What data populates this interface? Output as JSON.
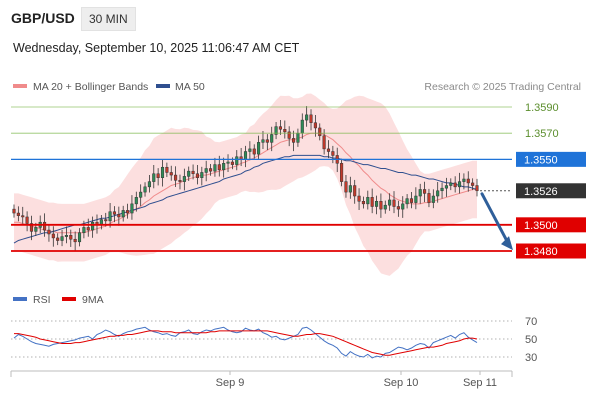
{
  "header": {
    "pair": "GBP/USD",
    "interval": "30 MIN",
    "datetime": "Wednesday, September 10, 2025 11:06:47 AM CET"
  },
  "legend": {
    "ma20_label": "MA 20 + Bollinger Bands",
    "ma20_color": "#f08b8b",
    "ma50_label": "MA 50",
    "ma50_color": "#2f4f8f",
    "credit": "Research © 2025 Trading Central"
  },
  "rsi_legend": {
    "rsi_label": "RSI",
    "rsi_color": "#4472c4",
    "ma9_label": "9MA",
    "ma9_color": "#e00000"
  },
  "chart_data": [
    {
      "type": "candlestick",
      "ylim": [
        1.3466,
        1.36
      ],
      "x_ticks": [
        "Sep 9",
        "Sep 10",
        "Sep 11"
      ],
      "levels": [
        {
          "value": 1.359,
          "label": "1.3590",
          "color": "#7ab648",
          "style": "line-green"
        },
        {
          "value": 1.357,
          "label": "1.3570",
          "color": "#7ab648",
          "style": "line-green"
        },
        {
          "value": 1.355,
          "label": "1.3550",
          "color": "#1f73d8",
          "style": "badge"
        },
        {
          "value": 1.3526,
          "label": "1.3526",
          "color": "#333333",
          "style": "badge-current"
        },
        {
          "value": 1.35,
          "label": "1.3500",
          "color": "#e00000",
          "style": "badge"
        },
        {
          "value": 1.348,
          "label": "1.3480",
          "color": "#e00000",
          "style": "badge"
        }
      ],
      "closes": [
        1.3509,
        1.3507,
        1.3506,
        1.3501,
        1.3495,
        1.3498,
        1.3502,
        1.3496,
        1.3493,
        1.349,
        1.3488,
        1.3491,
        1.3492,
        1.3489,
        1.3487,
        1.3494,
        1.3498,
        1.3496,
        1.3502,
        1.35,
        1.3504,
        1.3503,
        1.351,
        1.3508,
        1.3506,
        1.3511,
        1.3509,
        1.3516,
        1.3521,
        1.3525,
        1.3529,
        1.3533,
        1.3539,
        1.3536,
        1.3544,
        1.354,
        1.3538,
        1.3534,
        1.3533,
        1.3537,
        1.3541,
        1.3539,
        1.3536,
        1.354,
        1.3543,
        1.3541,
        1.3546,
        1.3542,
        1.3547,
        1.3548,
        1.3546,
        1.3552,
        1.355,
        1.3556,
        1.3558,
        1.3554,
        1.3563,
        1.3565,
        1.3563,
        1.3569,
        1.3575,
        1.3573,
        1.3571,
        1.3566,
        1.3563,
        1.357,
        1.358,
        1.3584,
        1.3578,
        1.3574,
        1.3568,
        1.3558,
        1.3556,
        1.3553,
        1.3547,
        1.3533,
        1.3525,
        1.353,
        1.3522,
        1.3518,
        1.3516,
        1.3521,
        1.3514,
        1.3518,
        1.3512,
        1.3515,
        1.3519,
        1.3514,
        1.3512,
        1.3516,
        1.352,
        1.3517,
        1.3522,
        1.3527,
        1.3524,
        1.3517,
        1.3522,
        1.3526,
        1.3528,
        1.353,
        1.3532,
        1.3529,
        1.3533,
        1.3535,
        1.3532,
        1.353,
        1.3526
      ],
      "ma20": [
        1.3502,
        1.3502,
        1.3501,
        1.35,
        1.3499,
        1.3498,
        1.3497,
        1.3496,
        1.3495,
        1.3495,
        1.3494,
        1.3494,
        1.3494,
        1.3494,
        1.3494,
        1.3494,
        1.3494,
        1.3495,
        1.3496,
        1.3497,
        1.3498,
        1.3499,
        1.3501,
        1.3503,
        1.3504,
        1.3506,
        1.3508,
        1.351,
        1.3512,
        1.3514,
        1.3517,
        1.3519,
        1.3522,
        1.3524,
        1.3526,
        1.3528,
        1.353,
        1.3531,
        1.3532,
        1.3534,
        1.3535,
        1.3536,
        1.3537,
        1.3538,
        1.3538,
        1.3539,
        1.354,
        1.3541,
        1.3542,
        1.3543,
        1.3544,
        1.3545,
        1.3547,
        1.3548,
        1.355,
        1.3551,
        1.3553,
        1.3555,
        1.3557,
        1.3559,
        1.3561,
        1.3563,
        1.3564,
        1.3565,
        1.3565,
        1.3566,
        1.3567,
        1.3569,
        1.357,
        1.357,
        1.357,
        1.3569,
        1.3567,
        1.3565,
        1.3562,
        1.3559,
        1.3555,
        1.3552,
        1.3548,
        1.3545,
        1.3541,
        1.3538,
        1.3534,
        1.3531,
        1.3528,
        1.3526,
        1.3523,
        1.3521,
        1.3519,
        1.3518,
        1.3517,
        1.3516,
        1.3516,
        1.3516,
        1.3517,
        1.3517,
        1.3518,
        1.3519,
        1.352,
        1.3521,
        1.3522,
        1.3523,
        1.3524,
        1.3525,
        1.3526,
        1.3527,
        1.3527
      ],
      "ma50": [
        1.3486,
        1.3488,
        1.3489,
        1.349,
        1.3491,
        1.3492,
        1.3493,
        1.3494,
        1.3494,
        1.3495,
        1.3496,
        1.3497,
        1.3498,
        1.3499,
        1.35,
        1.35,
        1.3501,
        1.3502,
        1.3503,
        1.3504,
        1.3505,
        1.3505,
        1.3506,
        1.3507,
        1.3508,
        1.3509,
        1.351,
        1.3511,
        1.3512,
        1.3513,
        1.3514,
        1.3516,
        1.3517,
        1.3518,
        1.3519,
        1.3521,
        1.3522,
        1.3523,
        1.3524,
        1.3525,
        1.3526,
        1.3527,
        1.3528,
        1.3529,
        1.353,
        1.3531,
        1.3532,
        1.3533,
        1.3535,
        1.3536,
        1.3537,
        1.3538,
        1.3539,
        1.3541,
        1.3542,
        1.3544,
        1.3545,
        1.3547,
        1.3548,
        1.3549,
        1.355,
        1.3551,
        1.3552,
        1.3552,
        1.3553,
        1.3553,
        1.3553,
        1.3553,
        1.3553,
        1.3553,
        1.3553,
        1.3552,
        1.3552,
        1.3551,
        1.3551,
        1.355,
        1.3549,
        1.3549,
        1.3548,
        1.3547,
        1.3546,
        1.3546,
        1.3545,
        1.3544,
        1.3543,
        1.3543,
        1.3542,
        1.3541,
        1.354,
        1.354,
        1.3539,
        1.3538,
        1.3538,
        1.3537,
        1.3536,
        1.3535,
        1.3535,
        1.3534,
        1.3533,
        1.3532,
        1.3532,
        1.3531,
        1.353,
        1.3529,
        1.3529,
        1.3528,
        1.3527
      ]
    },
    {
      "type": "line",
      "name": "RSI",
      "ylim": [
        25,
        75
      ],
      "y_ticks": [
        70,
        50,
        30
      ],
      "rsi": [
        51,
        55,
        53,
        50,
        47,
        45,
        44,
        43,
        42,
        44,
        45,
        46,
        47,
        48,
        49,
        51,
        52,
        53,
        50,
        55,
        57,
        60,
        58,
        55,
        53,
        56,
        58,
        59,
        61,
        62,
        63,
        60,
        58,
        57,
        55,
        56,
        54,
        53,
        57,
        58,
        60,
        56,
        55,
        58,
        60,
        59,
        61,
        62,
        63,
        60,
        58,
        57,
        58,
        62,
        60,
        59,
        61,
        57,
        55,
        52,
        53,
        50,
        49,
        51,
        53,
        55,
        62,
        63,
        60,
        56,
        52,
        48,
        45,
        43,
        40,
        34,
        31,
        36,
        33,
        31,
        30,
        33,
        29,
        31,
        30,
        34,
        35,
        38,
        41,
        40,
        38,
        40,
        43,
        45,
        44,
        40,
        46,
        48,
        50,
        52,
        54,
        51,
        55,
        57,
        52,
        49,
        46
      ],
      "ma9": [
        56,
        56,
        55,
        54,
        53,
        52,
        50,
        49,
        48,
        47,
        46,
        45,
        45,
        45,
        46,
        46,
        47,
        48,
        49,
        50,
        51,
        52,
        53,
        53,
        54,
        54,
        55,
        55,
        56,
        57,
        58,
        59,
        59,
        59,
        58,
        58,
        58,
        57,
        57,
        57,
        57,
        57,
        57,
        57,
        57,
        58,
        58,
        59,
        59,
        59,
        59,
        59,
        59,
        59,
        59,
        59,
        59,
        59,
        59,
        58,
        57,
        56,
        55,
        54,
        53,
        53,
        54,
        55,
        55,
        56,
        56,
        55,
        54,
        53,
        51,
        49,
        47,
        45,
        43,
        41,
        39,
        37,
        35,
        34,
        33,
        32,
        32,
        33,
        34,
        35,
        36,
        37,
        38,
        39,
        40,
        41,
        41,
        42,
        43,
        45,
        46,
        47,
        48,
        50,
        51,
        51,
        50
      ]
    }
  ]
}
